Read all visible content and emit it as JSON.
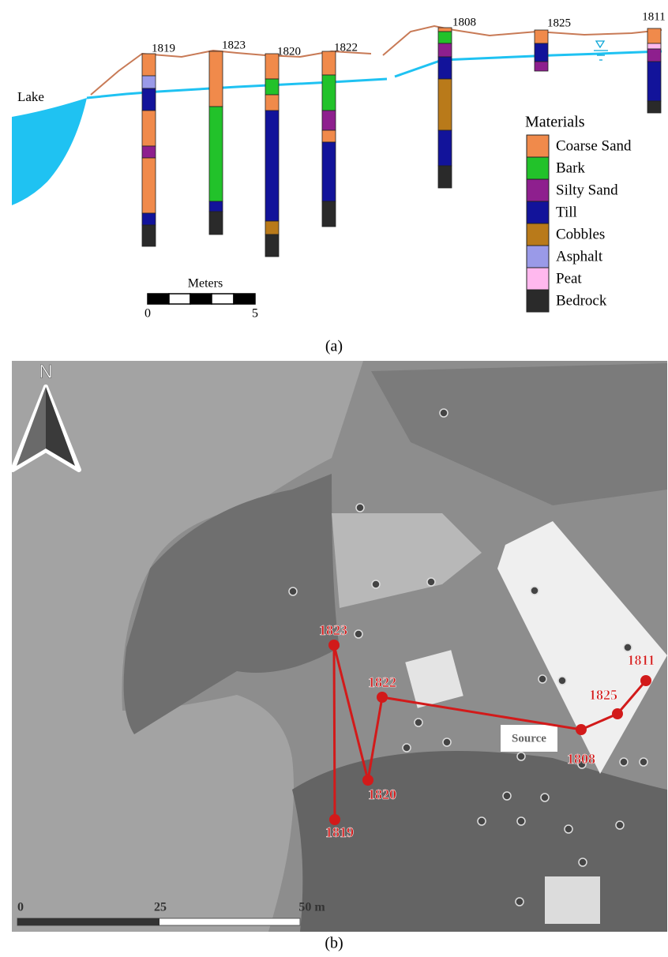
{
  "panel_a": {
    "lake": "Lake",
    "boreholes": [
      "1819",
      "1823",
      "1820",
      "1822",
      "1808",
      "1825",
      "1811"
    ],
    "legend": {
      "title": "Materials",
      "items": [
        {
          "label": "Coarse Sand",
          "color": "#f08a4b"
        },
        {
          "label": "Bark",
          "color": "#22c22a"
        },
        {
          "label": "Silty Sand",
          "color": "#8e1f8e"
        },
        {
          "label": "Till",
          "color": "#12139a"
        },
        {
          "label": "Cobbles",
          "color": "#b97a1a"
        },
        {
          "label": "Asphalt",
          "color": "#9a9ae8"
        },
        {
          "label": "Peat",
          "color": "#ffb8ee"
        },
        {
          "label": "Bedrock",
          "color": "#2a2a2a"
        }
      ]
    },
    "scale": {
      "title": "Meters",
      "start": "0",
      "end": "5"
    },
    "caption": "(a)"
  },
  "panel_b": {
    "north": "N",
    "wells": [
      "1819",
      "1823",
      "1820",
      "1822",
      "1808",
      "1825",
      "1811"
    ],
    "source": "Source",
    "scale": [
      "0",
      "25",
      "50 m"
    ],
    "caption": "(b)"
  }
}
